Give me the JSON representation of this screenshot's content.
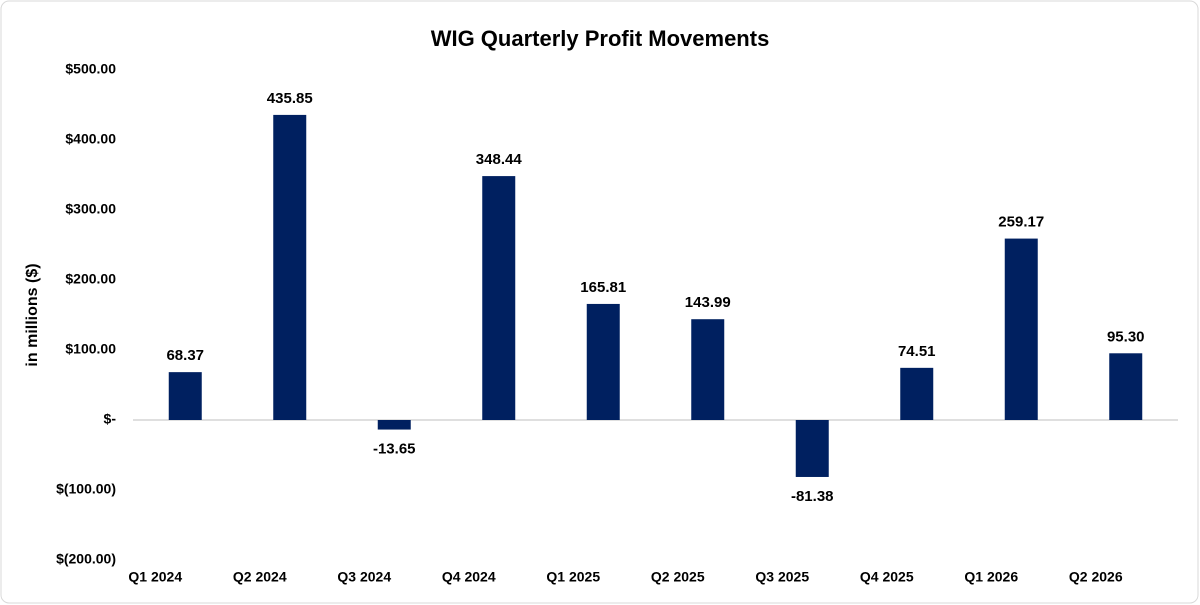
{
  "chart_data": {
    "type": "bar",
    "title": "WIG Quarterly Profit Movements",
    "y_label": "in millions ($)",
    "categories": [
      "Q1 2024",
      "Q2 2024",
      "Q3 2024",
      "Q4 2024",
      "Q1 2025",
      "Q2 2025",
      "Q3 2025",
      "Q4 2025",
      "Q1 2026",
      "Q2 2026"
    ],
    "values": [
      68.37,
      435.85,
      -13.65,
      348.44,
      165.81,
      143.99,
      -81.38,
      74.51,
      259.17,
      95.3
    ],
    "value_labels": [
      "68.37",
      "435.85",
      "-13.65",
      "348.44",
      "165.81",
      "143.99",
      "-81.38",
      "74.51",
      "259.17",
      "95.30"
    ],
    "color": "#002060",
    "ylim": [
      -200,
      500
    ],
    "yticks": [
      {
        "value": 500,
        "label": "$500.00"
      },
      {
        "value": 400,
        "label": "$400.00"
      },
      {
        "value": 300,
        "label": "$300.00"
      },
      {
        "value": 200,
        "label": "$200.00"
      },
      {
        "value": 100,
        "label": "$100.00"
      },
      {
        "value": 0,
        "label": "$-"
      },
      {
        "value": -100,
        "label": "$(100.00)"
      },
      {
        "value": -200,
        "label": "$(200.00)"
      }
    ],
    "grid": false
  }
}
